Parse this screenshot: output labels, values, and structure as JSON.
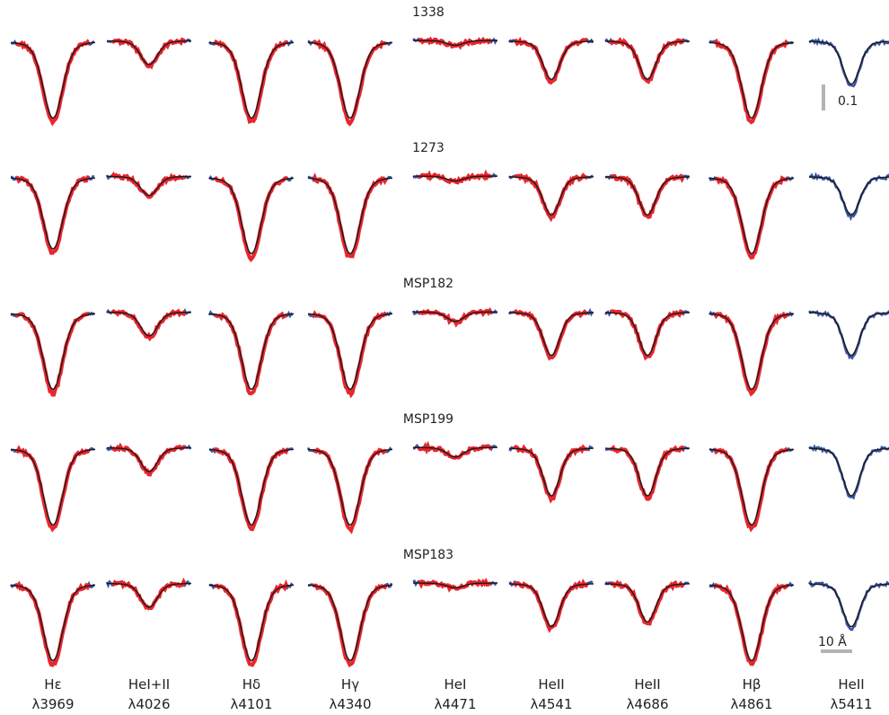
{
  "chart_data": {
    "type": "line",
    "title": "",
    "xlabel": "",
    "ylabel": "",
    "legend": "none",
    "grid": false,
    "colors": {
      "observed_fit_region": "#e8262e",
      "observed_other": "#3a55a4",
      "model": "#1a1a1a",
      "scale_bar": "#b3b3b3"
    },
    "stars": [
      "1338",
      "1273",
      "MSP182",
      "MSP199",
      "MSP183"
    ],
    "lines": [
      {
        "name": "Hε",
        "wavelength": "λ3969",
        "depths": [
          0.16,
          0.15,
          0.16,
          0.16,
          0.16
        ],
        "width": 3.5
      },
      {
        "name": "HeI+II",
        "wavelength": "λ4026",
        "depths": [
          0.05,
          0.04,
          0.05,
          0.05,
          0.05
        ],
        "width": 3.0
      },
      {
        "name": "Hδ",
        "wavelength": "λ4101",
        "depths": [
          0.16,
          0.16,
          0.16,
          0.16,
          0.16
        ],
        "width": 3.5
      },
      {
        "name": "Hγ",
        "wavelength": "λ4340",
        "depths": [
          0.16,
          0.16,
          0.16,
          0.16,
          0.16
        ],
        "width": 3.5
      },
      {
        "name": "HeI",
        "wavelength": "λ4471",
        "depths": [
          0.01,
          0.01,
          0.02,
          0.02,
          0.01
        ],
        "width": 3.0
      },
      {
        "name": "HeII",
        "wavelength": "λ4541",
        "depths": [
          0.08,
          0.08,
          0.09,
          0.1,
          0.09
        ],
        "width": 3.0
      },
      {
        "name": "HeII",
        "wavelength": "λ4686",
        "depths": [
          0.08,
          0.08,
          0.09,
          0.1,
          0.08
        ],
        "width": 3.0
      },
      {
        "name": "Hβ",
        "wavelength": "λ4861",
        "depths": [
          0.16,
          0.16,
          0.16,
          0.16,
          0.16
        ],
        "width": 3.5
      },
      {
        "name": "HeII",
        "wavelength": "λ5411",
        "depths": [
          0.09,
          0.08,
          0.09,
          0.1,
          0.09
        ],
        "width": 3.0
      }
    ],
    "scale_bars": {
      "flux": "0.1",
      "wavelength": "10 Å"
    }
  }
}
